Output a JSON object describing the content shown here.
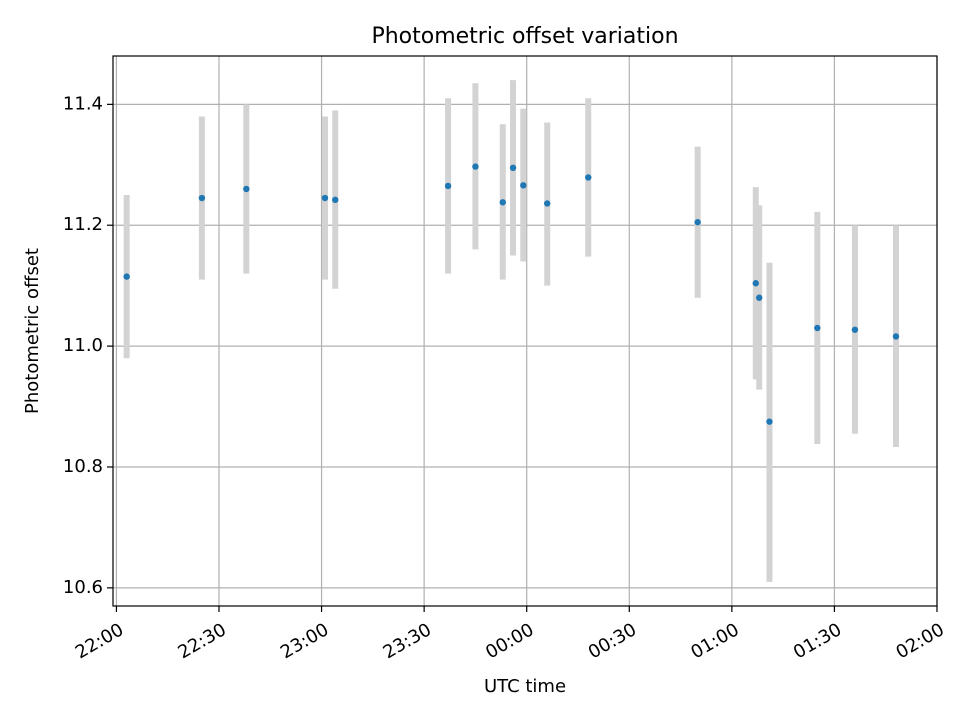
{
  "chart_data": {
    "type": "scatter",
    "title": "Photometric offset variation",
    "xlabel": "UTC time",
    "ylabel": "Photometric offset",
    "x_ticks": [
      "22:00",
      "22:30",
      "23:00",
      "23:30",
      "00:00",
      "00:30",
      "01:00",
      "01:30",
      "02:00"
    ],
    "y_ticks": [
      "10.6",
      "10.8",
      "11.0",
      "11.2",
      "11.4"
    ],
    "xlim": [
      "21:59",
      "02:00"
    ],
    "ylim": [
      10.57,
      11.48
    ],
    "grid": true,
    "point_color": "#1f77b4",
    "errorbar_color": "#d3d3d3",
    "series": [
      {
        "points": [
          {
            "t": "22:03",
            "y": 11.115,
            "lo": 10.98,
            "hi": 11.25
          },
          {
            "t": "22:25",
            "y": 11.245,
            "lo": 11.11,
            "hi": 11.38
          },
          {
            "t": "22:38",
            "y": 11.26,
            "lo": 11.12,
            "hi": 11.4
          },
          {
            "t": "23:01",
            "y": 11.245,
            "lo": 11.11,
            "hi": 11.38
          },
          {
            "t": "23:04",
            "y": 11.242,
            "lo": 11.095,
            "hi": 11.39
          },
          {
            "t": "23:37",
            "y": 11.265,
            "lo": 11.12,
            "hi": 11.41
          },
          {
            "t": "23:45",
            "y": 11.297,
            "lo": 11.16,
            "hi": 11.435
          },
          {
            "t": "23:53",
            "y": 11.238,
            "lo": 11.11,
            "hi": 11.367
          },
          {
            "t": "23:56",
            "y": 11.295,
            "lo": 11.15,
            "hi": 11.44
          },
          {
            "t": "23:59",
            "y": 11.266,
            "lo": 11.14,
            "hi": 11.393
          },
          {
            "t": "00:06",
            "y": 11.236,
            "lo": 11.1,
            "hi": 11.37
          },
          {
            "t": "00:18",
            "y": 11.279,
            "lo": 11.148,
            "hi": 11.41
          },
          {
            "t": "00:50",
            "y": 11.205,
            "lo": 11.08,
            "hi": 11.33
          },
          {
            "t": "01:07",
            "y": 11.104,
            "lo": 10.945,
            "hi": 11.263
          },
          {
            "t": "01:08",
            "y": 11.08,
            "lo": 10.928,
            "hi": 11.233
          },
          {
            "t": "01:11",
            "y": 10.875,
            "lo": 10.61,
            "hi": 11.138
          },
          {
            "t": "01:25",
            "y": 11.03,
            "lo": 10.838,
            "hi": 11.222
          },
          {
            "t": "01:36",
            "y": 11.027,
            "lo": 10.855,
            "hi": 11.2
          },
          {
            "t": "01:48",
            "y": 11.016,
            "lo": 10.833,
            "hi": 11.2
          }
        ]
      }
    ]
  }
}
